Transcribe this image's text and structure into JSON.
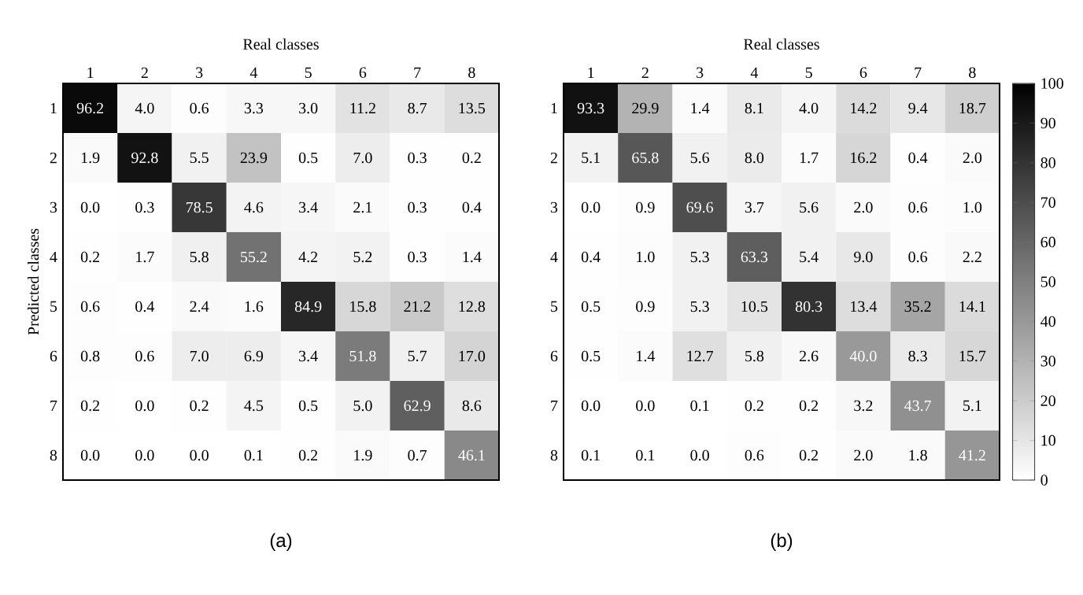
{
  "chart_data": [
    {
      "type": "heatmap",
      "xlabel": "Real classes",
      "ylabel": "Predicted classes",
      "categories": [
        "1",
        "2",
        "3",
        "4",
        "5",
        "6",
        "7",
        "8"
      ],
      "y_categories": [
        "1",
        "2",
        "3",
        "4",
        "5",
        "6",
        "7",
        "8"
      ],
      "cells": [
        [
          96.2,
          4.0,
          0.6,
          3.3,
          3.0,
          11.2,
          8.7,
          13.5
        ],
        [
          1.9,
          92.8,
          5.5,
          23.9,
          0.5,
          7.0,
          0.3,
          0.2
        ],
        [
          0.0,
          0.3,
          78.5,
          4.6,
          3.4,
          2.1,
          0.3,
          0.4
        ],
        [
          0.2,
          1.7,
          5.8,
          55.2,
          4.2,
          5.2,
          0.3,
          1.4
        ],
        [
          0.6,
          0.4,
          2.4,
          1.6,
          84.9,
          15.8,
          21.2,
          12.8
        ],
        [
          0.8,
          0.6,
          7.0,
          6.9,
          3.4,
          51.8,
          5.7,
          17.0
        ],
        [
          0.2,
          0.0,
          0.2,
          4.5,
          0.5,
          5.0,
          62.9,
          8.6
        ],
        [
          0.0,
          0.0,
          0.0,
          0.1,
          0.2,
          1.9,
          0.7,
          46.1
        ]
      ],
      "cell_labels": [
        [
          "96.2",
          "4.0",
          "0.6",
          "3.3",
          "3.0",
          "11.2",
          "8.7",
          "13.5"
        ],
        [
          "1.9",
          "92.8",
          "5.5",
          "23.9",
          "0.5",
          "7.0",
          "0.3",
          "0.2"
        ],
        [
          "0.0",
          "0.3",
          "78.5",
          "4.6",
          "3.4",
          "2.1",
          "0.3",
          "0.4"
        ],
        [
          "0.2",
          "1.7",
          "5.8",
          "55.2",
          "4.2",
          "5.2",
          "0.3",
          "1.4"
        ],
        [
          "0.6",
          "0.4",
          "2.4",
          "1.6",
          "84.9",
          "15.8",
          "21.2",
          "12.8"
        ],
        [
          "0.8",
          "0.6",
          "7.0",
          "6.9",
          "3.4",
          "51.8",
          "5.7",
          "17.0"
        ],
        [
          "0.2",
          "0.0",
          "0.2",
          "4.5",
          "0.5",
          "5.0",
          "62.9",
          "8.6"
        ],
        [
          "0.0",
          "0.0",
          "0.0",
          "0.1",
          "0.2",
          "1.9",
          "0.7",
          "46.1"
        ]
      ],
      "annotations": [
        "(a)"
      ]
    },
    {
      "type": "heatmap",
      "xlabel": "Real classes",
      "categories": [
        "1",
        "2",
        "3",
        "4",
        "5",
        "6",
        "7",
        "8"
      ],
      "y_categories": [
        "1",
        "2",
        "3",
        "4",
        "5",
        "6",
        "7",
        "8"
      ],
      "cells": [
        [
          93.3,
          29.9,
          1.4,
          8.1,
          4.0,
          14.2,
          9.4,
          18.7
        ],
        [
          5.1,
          65.8,
          5.6,
          8.0,
          1.7,
          16.2,
          0.4,
          2.0
        ],
        [
          0.0,
          0.9,
          69.6,
          3.7,
          5.6,
          2.0,
          0.6,
          1.0
        ],
        [
          0.4,
          1.0,
          5.3,
          63.3,
          5.4,
          9.0,
          0.6,
          2.2
        ],
        [
          0.5,
          0.9,
          5.3,
          10.5,
          80.3,
          13.4,
          35.2,
          14.1
        ],
        [
          0.5,
          1.4,
          12.7,
          5.8,
          2.6,
          40.0,
          8.3,
          15.7
        ],
        [
          0.0,
          0.0,
          0.1,
          0.2,
          0.2,
          3.2,
          43.7,
          5.1
        ],
        [
          0.1,
          0.1,
          0.0,
          0.6,
          0.2,
          2.0,
          1.8,
          41.2
        ]
      ],
      "cell_labels": [
        [
          "93.3",
          "29.9",
          "1.4",
          "8.1",
          "4.0",
          "14.2",
          "9.4",
          "18.7"
        ],
        [
          "5.1",
          "65.8",
          "5.6",
          "8.0",
          "1.7",
          "16.2",
          "0.4",
          "2.0"
        ],
        [
          "0.0",
          "0.9",
          "69.6",
          "3.7",
          "5.6",
          "2.0",
          "0.6",
          "1.0"
        ],
        [
          "0.4",
          "1.0",
          "5.3",
          "63.3",
          "5.4",
          "9.0",
          "0.6",
          "2.2"
        ],
        [
          "0.5",
          "0.9",
          "5.3",
          "10.5",
          "80.3",
          "13.4",
          "35.2",
          "14.1"
        ],
        [
          "0.5",
          "1.4",
          "12.7",
          "5.8",
          "2.6",
          "40.0",
          "8.3",
          "15.7"
        ],
        [
          "0.0",
          "0.0",
          "0.1",
          "0.2",
          "0.2",
          "3.2",
          "43.7",
          "5.1"
        ],
        [
          "0.1",
          "0.1",
          "0.0",
          "0.6",
          "0.2",
          "2.0",
          "1.8",
          "41.2"
        ]
      ],
      "clim": [
        0,
        100
      ],
      "cticks": [
        0,
        10,
        20,
        30,
        40,
        50,
        60,
        70,
        80,
        90,
        100
      ],
      "annotations": [
        "(b)"
      ]
    }
  ]
}
